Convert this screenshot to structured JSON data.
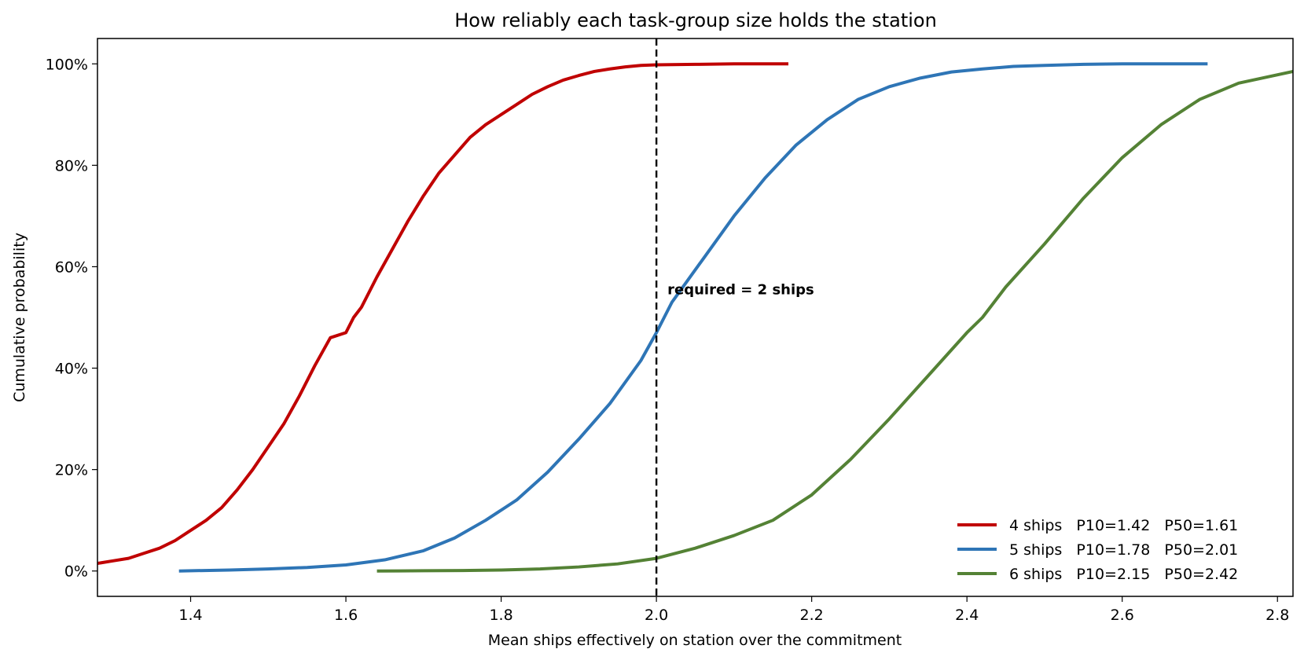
{
  "chart_data": {
    "type": "line",
    "title": "How reliably each task-group size holds the station",
    "xlabel": "Mean ships effectively on station over the commitment",
    "ylabel": "Cumulative probability",
    "xlim": [
      1.28,
      2.82
    ],
    "ylim": [
      -0.05,
      1.05
    ],
    "x_ticks": [
      1.4,
      1.6,
      1.8,
      2.0,
      2.2,
      2.4,
      2.6,
      2.8
    ],
    "x_tick_labels": [
      "1.4",
      "1.6",
      "1.8",
      "2.0",
      "2.2",
      "2.4",
      "2.6",
      "2.8"
    ],
    "y_ticks": [
      0,
      0.2,
      0.4,
      0.6,
      0.8,
      1.0
    ],
    "y_tick_labels": [
      "0%",
      "20%",
      "40%",
      "60%",
      "80%",
      "100%"
    ],
    "grid": false,
    "legend_position": "bottom-right",
    "reference_line": {
      "x": 2.0,
      "style": "dashed",
      "color": "#000000",
      "label": "required = 2 ships",
      "label_y": 0.555
    },
    "series": [
      {
        "name": "4 ships   P10=1.42   P50=1.61",
        "color": "#c00000",
        "x": [
          1.28,
          1.3,
          1.32,
          1.34,
          1.36,
          1.38,
          1.4,
          1.42,
          1.44,
          1.46,
          1.48,
          1.5,
          1.52,
          1.54,
          1.56,
          1.58,
          1.6,
          1.61,
          1.62,
          1.64,
          1.66,
          1.68,
          1.7,
          1.72,
          1.74,
          1.76,
          1.78,
          1.8,
          1.82,
          1.84,
          1.86,
          1.88,
          1.9,
          1.92,
          1.94,
          1.96,
          1.98,
          2.0,
          2.05,
          2.1,
          2.17
        ],
        "y": [
          0.015,
          0.02,
          0.025,
          0.035,
          0.045,
          0.06,
          0.08,
          0.1,
          0.125,
          0.16,
          0.2,
          0.245,
          0.29,
          0.345,
          0.405,
          0.46,
          0.47,
          0.5,
          0.52,
          0.58,
          0.635,
          0.69,
          0.74,
          0.785,
          0.82,
          0.855,
          0.88,
          0.9,
          0.92,
          0.94,
          0.955,
          0.968,
          0.977,
          0.985,
          0.99,
          0.994,
          0.997,
          0.998,
          0.999,
          1.0,
          1.0
        ]
      },
      {
        "name": "5 ships   P10=1.78   P50=2.01",
        "color": "#2e75b6",
        "x": [
          1.385,
          1.45,
          1.5,
          1.55,
          1.6,
          1.65,
          1.7,
          1.74,
          1.78,
          1.82,
          1.86,
          1.9,
          1.94,
          1.98,
          2.0,
          2.01,
          2.02,
          2.06,
          2.1,
          2.14,
          2.18,
          2.22,
          2.26,
          2.3,
          2.34,
          2.38,
          2.42,
          2.46,
          2.5,
          2.55,
          2.6,
          2.65,
          2.71
        ],
        "y": [
          0.0,
          0.002,
          0.004,
          0.007,
          0.012,
          0.022,
          0.04,
          0.065,
          0.1,
          0.14,
          0.195,
          0.26,
          0.33,
          0.415,
          0.47,
          0.5,
          0.53,
          0.615,
          0.7,
          0.775,
          0.84,
          0.89,
          0.93,
          0.955,
          0.972,
          0.984,
          0.99,
          0.995,
          0.997,
          0.999,
          1.0,
          1.0,
          1.0
        ]
      },
      {
        "name": "6 ships   P10=2.15   P50=2.42",
        "color": "#548235",
        "x": [
          1.64,
          1.7,
          1.75,
          1.8,
          1.85,
          1.9,
          1.95,
          2.0,
          2.05,
          2.1,
          2.15,
          2.2,
          2.25,
          2.3,
          2.35,
          2.4,
          2.42,
          2.45,
          2.5,
          2.55,
          2.6,
          2.65,
          2.7,
          2.75,
          2.82
        ],
        "y": [
          0.0,
          0.0005,
          0.001,
          0.002,
          0.004,
          0.008,
          0.014,
          0.025,
          0.045,
          0.07,
          0.1,
          0.15,
          0.22,
          0.3,
          0.385,
          0.47,
          0.5,
          0.56,
          0.645,
          0.735,
          0.815,
          0.88,
          0.93,
          0.962,
          0.985
        ]
      }
    ]
  }
}
